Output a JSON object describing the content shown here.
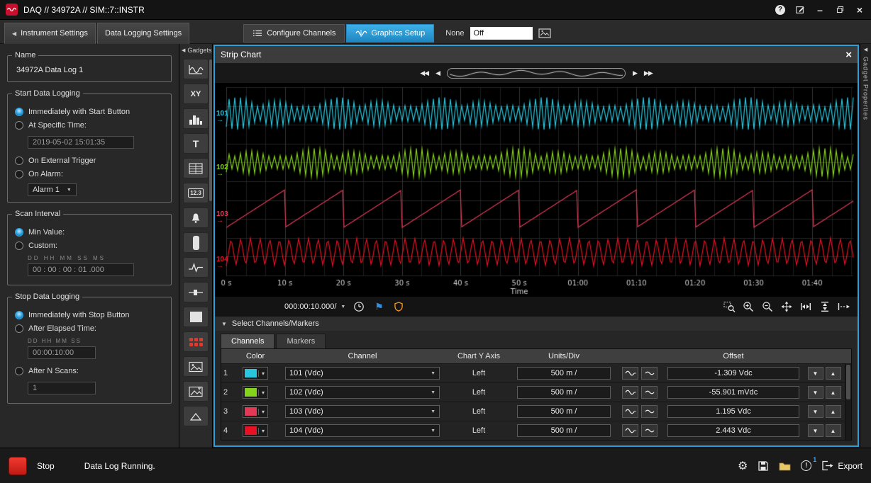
{
  "titlebar": {
    "title": "DAQ // 34972A // SIM::7::INSTR"
  },
  "header_tabs": {
    "instrument_settings": "Instrument Settings",
    "data_logging_settings": "Data Logging Settings",
    "configure_channels": "Configure Channels",
    "graphics_setup": "Graphics Setup",
    "overlay_label": "None",
    "overlay_value": "Off"
  },
  "left_panel": {
    "name_title": "Name",
    "name_value": "34972A Data Log 1",
    "start": {
      "title": "Start Data Logging",
      "immediately": "Immediately with Start Button",
      "at_time": "At Specific Time:",
      "time_value": "2019-05-02 15:01:35",
      "external": "On External Trigger",
      "on_alarm": "On Alarm:",
      "alarm_value": "Alarm 1"
    },
    "scan": {
      "title": "Scan Interval",
      "min_value": "Min Value:",
      "custom": "Custom:",
      "units": "DD   HH   MM   SS    MS",
      "value": "00 : 00 : 00 : 01 .000"
    },
    "stop": {
      "title": "Stop Data Logging",
      "immediately": "Immediately with Stop Button",
      "elapsed": "After Elapsed Time:",
      "elapsed_units": "DD HH MM SS",
      "elapsed_value": "00:00:10:00",
      "n_scans": "After N Scans:",
      "n_scans_value": "1"
    }
  },
  "gadgets": {
    "header": "Gadgets",
    "xy_label": "XY",
    "text_label": "T",
    "digital_label": "12.3"
  },
  "strip_chart": {
    "title": "Strip Chart",
    "timebase": "000:00:10.000/",
    "select_channels": "Select Channels/Markers",
    "tab_channels": "Channels",
    "tab_markers": "Markers"
  },
  "channels_table": {
    "headers": {
      "color": "Color",
      "channel": "Channel",
      "axis": "Chart Y Axis",
      "units": "Units/Div",
      "offset": "Offset"
    }
  },
  "statusbar": {
    "stop": "Stop",
    "status": "Data Log Running.",
    "notification_count": "1",
    "export": "Export"
  },
  "right_panel": {
    "label": "Gadget Properties"
  },
  "icons": {
    "help": "?",
    "minimize": "–",
    "close": "×",
    "collapse_left": "◀",
    "rewind": "◀◀",
    "step_back": "◀",
    "step_forward": "▶",
    "fast_forward": "▶▶",
    "dropdown": "▼",
    "section_collapse": "▼",
    "swatch_dropdown": "▾",
    "up": "▲",
    "down": "▼",
    "flag": "⚑",
    "gear": "⚙",
    "marker_arrow": "→",
    "info": "!"
  },
  "chart_data": {
    "type": "line",
    "title": "Strip Chart",
    "xlabel": "Time",
    "x_ticks": [
      "0 s",
      "10 s",
      "20 s",
      "30 s",
      "40 s",
      "50 s",
      "01:00",
      "01:10",
      "01:20",
      "01:30",
      "01:40"
    ],
    "x_span_seconds": 105,
    "grid": true,
    "background": "#000000",
    "legend_position": "none",
    "timebase_per_div": "000:00:10.000/",
    "series": [
      {
        "row": "1",
        "label": "101",
        "channel": "101 (Vdc)",
        "color": "#29c7de",
        "y_axis": "Left",
        "units_per_div": "500 m /",
        "offset": "-1.309 Vdc",
        "pattern": "noisy-zigzag",
        "center_frac": 0.14,
        "amp_frac": 0.085,
        "period_divs": 0.1,
        "seed": 0.3,
        "marker_top": "13%"
      },
      {
        "row": "2",
        "label": "102",
        "channel": "102 (Vdc)",
        "color": "#84d41e",
        "y_axis": "Left",
        "units_per_div": "500 m /",
        "offset": "-55.901 mVdc",
        "pattern": "noisy-zigzag",
        "center_frac": 0.4,
        "amp_frac": 0.075,
        "period_divs": 0.1,
        "seed": 2.1,
        "marker_top": "38%"
      },
      {
        "row": "3",
        "label": "103",
        "channel": "103 (Vdc)",
        "color": "#e23a56",
        "y_axis": "Left",
        "units_per_div": "500 m /",
        "offset": "1.195 Vdc",
        "pattern": "sawtooth",
        "center_frac": 0.645,
        "amp_frac": 0.1,
        "period_divs": 1.0,
        "seed": 0,
        "marker_top": "60%"
      },
      {
        "row": "4",
        "label": "104",
        "channel": "104 (Vdc)",
        "color": "#e81123",
        "y_axis": "Left",
        "units_per_div": "500 m /",
        "offset": "2.443 Vdc",
        "pattern": "triangle",
        "center_frac": 0.875,
        "amp_frac": 0.075,
        "period_divs": 0.165,
        "seed": 0,
        "marker_top": "81%"
      }
    ]
  }
}
